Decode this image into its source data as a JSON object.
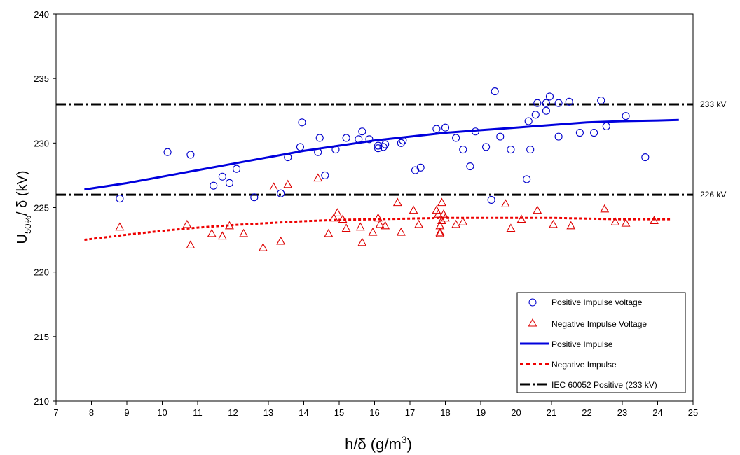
{
  "chart_data": {
    "type": "scatter",
    "title": "",
    "xlabel": {
      "main": "h/δ (g/m",
      "sup": "3",
      "end": ")"
    },
    "ylabel": {
      "main": "U",
      "sub": "50%",
      "rest": "/ δ  (kV)"
    },
    "xlim": [
      7,
      25
    ],
    "ylim": [
      210,
      240
    ],
    "xticks": [
      "7",
      "8",
      "9",
      "10",
      "11",
      "12",
      "13",
      "14",
      "15",
      "16",
      "17",
      "18",
      "19",
      "20",
      "21",
      "22",
      "23",
      "24",
      "25"
    ],
    "yticks": [
      "210",
      "215",
      "220",
      "225",
      "230",
      "235",
      "240"
    ],
    "grid": false,
    "legend_position": "bottom-right",
    "series": [
      {
        "name": "Positive Impulse voltage",
        "marker": "circle",
        "color": "#0000cc",
        "points": [
          [
            8.8,
            225.7
          ],
          [
            10.15,
            229.3
          ],
          [
            10.8,
            229.1
          ],
          [
            11.45,
            226.7
          ],
          [
            11.7,
            227.4
          ],
          [
            11.9,
            226.9
          ],
          [
            12.1,
            228.0
          ],
          [
            12.6,
            225.8
          ],
          [
            13.35,
            226.1
          ],
          [
            13.55,
            228.9
          ],
          [
            13.9,
            229.7
          ],
          [
            13.95,
            231.6
          ],
          [
            14.4,
            229.3
          ],
          [
            14.45,
            230.4
          ],
          [
            14.6,
            227.5
          ],
          [
            14.9,
            229.5
          ],
          [
            15.2,
            230.4
          ],
          [
            15.55,
            230.3
          ],
          [
            15.65,
            230.9
          ],
          [
            15.85,
            230.3
          ],
          [
            16.1,
            229.6
          ],
          [
            16.1,
            229.8
          ],
          [
            16.25,
            229.7
          ],
          [
            16.3,
            229.9
          ],
          [
            16.75,
            230.0
          ],
          [
            16.8,
            230.2
          ],
          [
            17.15,
            227.9
          ],
          [
            17.3,
            228.1
          ],
          [
            17.75,
            231.1
          ],
          [
            18.0,
            231.2
          ],
          [
            18.3,
            230.4
          ],
          [
            18.5,
            229.5
          ],
          [
            18.7,
            228.2
          ],
          [
            18.85,
            230.9
          ],
          [
            19.15,
            229.7
          ],
          [
            19.3,
            225.6
          ],
          [
            19.4,
            234.0
          ],
          [
            19.55,
            230.5
          ],
          [
            19.85,
            229.5
          ],
          [
            20.3,
            227.2
          ],
          [
            20.35,
            231.7
          ],
          [
            20.4,
            229.5
          ],
          [
            20.55,
            232.2
          ],
          [
            20.6,
            233.1
          ],
          [
            20.85,
            233.1
          ],
          [
            20.85,
            232.5
          ],
          [
            20.95,
            233.6
          ],
          [
            21.2,
            230.5
          ],
          [
            21.2,
            233.1
          ],
          [
            21.5,
            233.2
          ],
          [
            21.8,
            230.8
          ],
          [
            22.2,
            230.8
          ],
          [
            22.4,
            233.3
          ],
          [
            22.55,
            231.3
          ],
          [
            23.1,
            232.1
          ],
          [
            23.65,
            228.9
          ]
        ]
      },
      {
        "name": "Negative Impulse Voltage",
        "marker": "triangle",
        "color": "#dd0000",
        "points": [
          [
            8.8,
            223.5
          ],
          [
            10.7,
            223.7
          ],
          [
            10.8,
            222.1
          ],
          [
            11.4,
            223.0
          ],
          [
            11.7,
            222.8
          ],
          [
            11.9,
            223.6
          ],
          [
            12.3,
            223.0
          ],
          [
            12.85,
            221.9
          ],
          [
            13.15,
            226.6
          ],
          [
            13.35,
            222.4
          ],
          [
            13.55,
            226.8
          ],
          [
            14.4,
            227.3
          ],
          [
            14.7,
            223.0
          ],
          [
            14.85,
            224.2
          ],
          [
            14.95,
            224.6
          ],
          [
            15.1,
            224.1
          ],
          [
            15.2,
            223.4
          ],
          [
            15.6,
            223.5
          ],
          [
            15.65,
            222.3
          ],
          [
            15.95,
            223.1
          ],
          [
            16.1,
            224.2
          ],
          [
            16.15,
            223.7
          ],
          [
            16.3,
            223.6
          ],
          [
            16.65,
            225.4
          ],
          [
            16.75,
            223.1
          ],
          [
            17.1,
            224.8
          ],
          [
            17.25,
            223.7
          ],
          [
            17.75,
            224.8
          ],
          [
            17.8,
            224.5
          ],
          [
            17.85,
            223.0
          ],
          [
            17.85,
            223.1
          ],
          [
            17.85,
            223.6
          ],
          [
            17.9,
            224.0
          ],
          [
            17.9,
            225.4
          ],
          [
            17.95,
            224.5
          ],
          [
            18.0,
            224.2
          ],
          [
            18.3,
            223.7
          ],
          [
            18.5,
            223.9
          ],
          [
            19.7,
            225.3
          ],
          [
            19.85,
            223.4
          ],
          [
            20.15,
            224.1
          ],
          [
            20.6,
            224.8
          ],
          [
            21.05,
            223.7
          ],
          [
            21.55,
            223.6
          ],
          [
            22.5,
            224.9
          ],
          [
            22.8,
            223.9
          ],
          [
            23.1,
            223.8
          ],
          [
            23.9,
            224.0
          ]
        ]
      },
      {
        "name": "Positive Impulse",
        "type": "line",
        "style": "solid",
        "color": "#0000dd",
        "points": [
          [
            7.8,
            226.4
          ],
          [
            9,
            226.9
          ],
          [
            10,
            227.4
          ],
          [
            11,
            227.9
          ],
          [
            12,
            228.4
          ],
          [
            13,
            228.9
          ],
          [
            14,
            229.4
          ],
          [
            15,
            229.8
          ],
          [
            16,
            230.2
          ],
          [
            17,
            230.5
          ],
          [
            18,
            230.8
          ],
          [
            19,
            231.0
          ],
          [
            20,
            231.2
          ],
          [
            21,
            231.4
          ],
          [
            22,
            231.6
          ],
          [
            23,
            231.7
          ],
          [
            24,
            231.75
          ],
          [
            24.6,
            231.8
          ]
        ]
      },
      {
        "name": "Negative Impulse",
        "type": "line",
        "style": "dashed",
        "color": "#ee0000",
        "points": [
          [
            7.8,
            222.5
          ],
          [
            9,
            222.9
          ],
          [
            10,
            223.2
          ],
          [
            11,
            223.45
          ],
          [
            12,
            223.65
          ],
          [
            13,
            223.8
          ],
          [
            14,
            223.95
          ],
          [
            15,
            224.05
          ],
          [
            16,
            224.1
          ],
          [
            17,
            224.15
          ],
          [
            18,
            224.2
          ],
          [
            19,
            224.2
          ],
          [
            20,
            224.2
          ],
          [
            21,
            224.2
          ],
          [
            22,
            224.15
          ],
          [
            23,
            224.1
          ],
          [
            24.4,
            224.1
          ]
        ]
      },
      {
        "name": "IEC 60052 Positive (233 kV)",
        "type": "hline",
        "style": "dashdot",
        "color": "#000000",
        "y": 233
      }
    ],
    "reference_lines": [
      {
        "y": 233,
        "label": "233 kV"
      },
      {
        "y": 226,
        "label": "226 kV"
      }
    ]
  }
}
